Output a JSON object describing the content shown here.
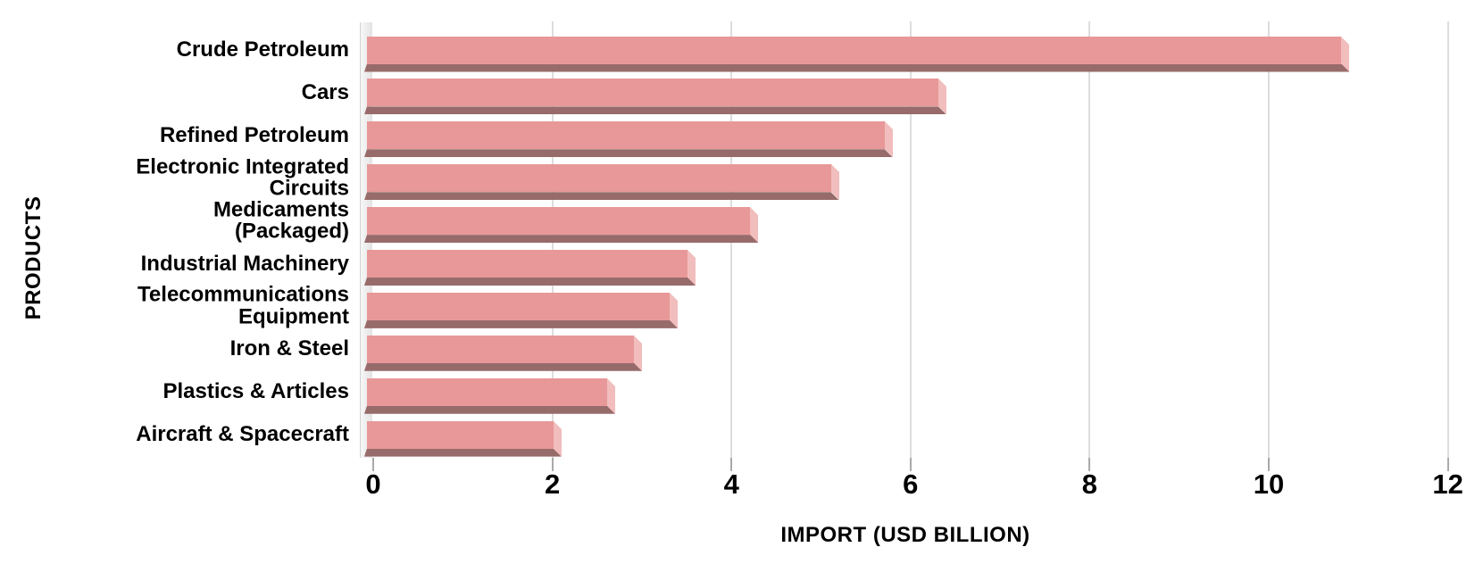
{
  "chart_data": {
    "type": "bar",
    "orientation": "horizontal",
    "categories": [
      "Crude Petroleum",
      "Cars",
      "Refined Petroleum",
      "Electronic Integrated Circuits",
      "Medicaments (Packaged)",
      "Industrial Machinery",
      "Telecommunications Equipment",
      "Iron & Steel",
      "Plastics & Articles",
      "Aircraft & Spacecraft"
    ],
    "category_display": [
      "Crude Petroleum",
      "Cars",
      "Refined Petroleum",
      "Electronic Integrated\nCircuits",
      "Medicaments\n(Packaged)",
      "Industrial Machinery",
      "Telecommunications\nEquipment",
      "Iron & Steel",
      "Plastics & Articles",
      "Aircraft & Spacecraft"
    ],
    "values": [
      10.9,
      6.4,
      5.8,
      5.2,
      4.3,
      3.6,
      3.4,
      3.0,
      2.7,
      2.1
    ],
    "xlabel": "IMPORT (USD BILLION)",
    "ylabel": "PRODUCTS",
    "xlim": [
      0,
      12
    ],
    "x_ticks": [
      0,
      2,
      4,
      6,
      8,
      10,
      12
    ],
    "grid": true,
    "legend": false,
    "bar_style": "3d-extruded",
    "colors": {
      "bar_face": "#E89898",
      "bar_side": "#F2BDBD",
      "bar_bottom": "#986B6B",
      "wall": "#ECECEC",
      "gridline": "#DDDDDD",
      "tick": "#AAAAAA",
      "text": "#000000",
      "background": "#FFFFFF"
    }
  }
}
